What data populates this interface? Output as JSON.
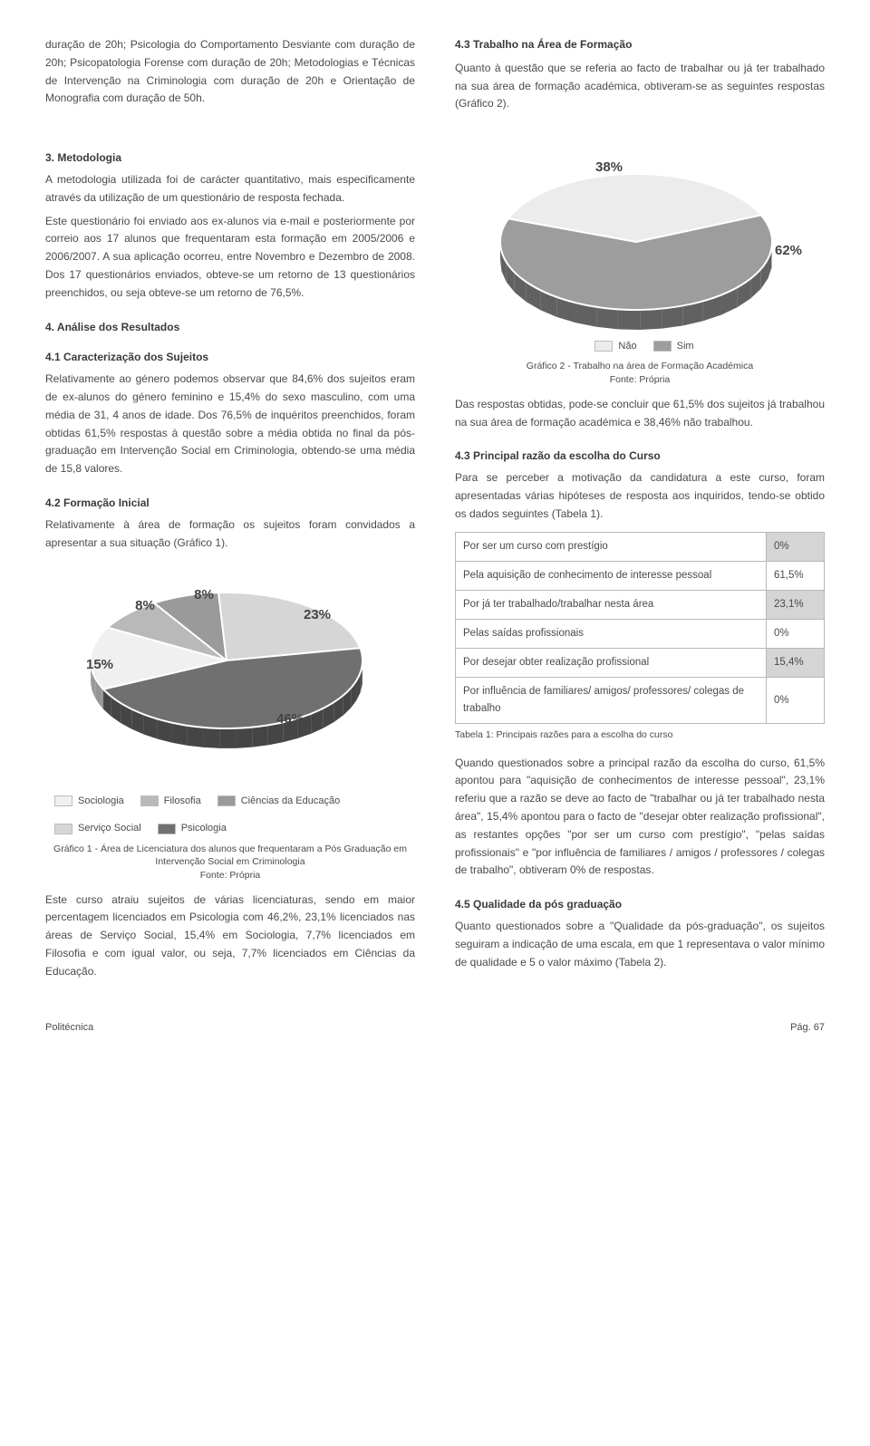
{
  "intro_col1": [
    "duração de 20h; Psicologia do Comportamento Desviante com duração de 20h; Psicopatologia Forense com duração de 20h; Metodologias e Técnicas de Intervenção na Criminologia com duração de 20h e Orientação de Monografia com duração de 50h."
  ],
  "intro_col2_head": "4.3 Trabalho na Área de Formação",
  "intro_col2_body": "Quanto à questão que se referia ao facto de trabalhar ou já ter trabalhado na sua área de formação académica, obtiveram-se as seguintes respostas (Gráfico 2).",
  "sec3_title": "3. Metodologia",
  "sec3_p1": "A metodologia utilizada foi de carácter quantitativo, mais especificamente através da utilização de um questionário de resposta fechada.",
  "sec3_p2": "Este questionário foi enviado aos ex-alunos via e-mail e posteriormente por correio aos 17 alunos que frequentaram esta formação em 2005/2006 e 2006/2007. A sua aplicação ocorreu, entre Novembro e Dezembro de 2008. Dos 17 questionários enviados, obteve-se um retorno de 13 questionários preenchidos, ou seja obteve-se um retorno de 76,5%.",
  "sec4_title": "4. Análise dos Resultados",
  "sec41_title": "4.1 Caracterização dos Sujeitos",
  "sec41_body": "Relativamente ao género podemos observar que 84,6% dos sujeitos eram de ex-alunos do género feminino e 15,4% do sexo masculino, com uma média de 31, 4 anos de idade. Dos 76,5% de inquéritos preenchidos, foram obtidas 61,5% respostas à questão sobre a média obtida no final da pós-graduação em Intervenção Social em Criminologia, obtendo-se uma média de 15,8 valores.",
  "sec42_title": "4.2 Formação Inicial",
  "sec42_body": "Relativamente à área de formação os sujeitos foram convidados a apresentar a sua situação (Gráfico 1).",
  "chart1": {
    "type": "pie-3d",
    "background": "#ffffff",
    "slice_edge": "#ffffff",
    "depth_shade": "#4f4f4f",
    "label_fontsize": 15,
    "label_color": "#4a4a4a",
    "slices": [
      {
        "label": "Sociologia",
        "pct": 15,
        "text": "15%",
        "color": "#f0f0f0"
      },
      {
        "label": "Filosofia",
        "pct": 8,
        "text": "8%",
        "color": "#b9b9b9"
      },
      {
        "label": "Ciências da Educação",
        "pct": 8,
        "text": "8%",
        "color": "#9a9a9a"
      },
      {
        "label": "Serviço Social",
        "pct": 23,
        "text": "23%",
        "color": "#d6d6d6"
      },
      {
        "label": "Psicologia",
        "pct": 46,
        "text": "46%",
        "color": "#707070"
      }
    ],
    "legend_swatch_border": "#bcbcbc",
    "caption_line1": "Gráfico 1 - Área de Licenciatura dos alunos que frequentaram a Pós Graduação em Intervenção Social em Criminologia",
    "caption_line2": "Fonte: Própria"
  },
  "aftc1": "Este curso atraiu sujeitos de várias licenciaturas, sendo em maior percentagem licenciados em Psicologia com 46,2%, 23,1% licenciados nas áreas de Serviço Social, 15,4% em Sociologia, 7,7% licenciados em Filosofia e com igual valor, ou seja, 7,7% licenciados em Ciências da Educação.",
  "chart2": {
    "type": "pie-3d",
    "background": "#ffffff",
    "slice_edge": "#ffffff",
    "depth_shade": "#5a5a5a",
    "label_fontsize": 15,
    "label_color": "#4a4a4a",
    "slices": [
      {
        "label": "Não",
        "pct": 38,
        "text": "38%",
        "color": "#ececec"
      },
      {
        "label": "Sim",
        "pct": 62,
        "text": "62%",
        "color": "#9d9d9d"
      }
    ],
    "caption_line1": "Gráfico 2 - Trabalho na área de Formação Académica",
    "caption_line2": "Fonte: Própria"
  },
  "aftc2": "Das respostas obtidas, pode-se concluir que 61,5% dos sujeitos já trabalhou na sua área de formação académica e 38,46% não trabalhou.",
  "sec43b_title": "4.3 Principal razão da escolha do Curso",
  "sec43b_body": "Para se perceber a motivação da candidatura a este curso, foram apresentadas várias hipóteses de resposta aos inquiridos, tendo-se obtido os dados seguintes (Tabela 1).",
  "table1": {
    "border_color": "#b8b8b8",
    "font_size": 11.5,
    "row_alt_bg": "#d5d5d5",
    "row_bg": "#ffffff",
    "rows": [
      {
        "label": "Por ser um curso com prestígio",
        "value": "0%",
        "shade": true
      },
      {
        "label": "Pela aquisição de conhecimento de interesse pessoal",
        "value": "61,5%",
        "shade": false
      },
      {
        "label": "Por já ter trabalhado/trabalhar nesta área",
        "value": "23,1%",
        "shade": true
      },
      {
        "label": "Pelas saídas profissionais",
        "value": "0%",
        "shade": false
      },
      {
        "label": "Por desejar obter realização profissional",
        "value": "15,4%",
        "shade": true
      },
      {
        "label": "Por influência de familiares/ amigos/ professores/ colegas de trabalho",
        "value": "0%",
        "shade": false
      }
    ],
    "caption": "Tabela 1: Principais razões para a escolha do curso"
  },
  "aftt1": "Quando questionados sobre a principal razão da escolha do curso, 61,5% apontou para \"aquisição de conhecimentos de interesse pessoal\", 23,1% referiu que a razão se deve ao facto de \"trabalhar ou já ter trabalhado nesta área\", 15,4% apontou para o facto de \"desejar obter realização profissional\", as restantes opções \"por ser um curso com prestígio\", \"pelas saídas profissionais\" e \"por influência de familiares / amigos / professores / colegas de trabalho\", obtiveram 0% de respostas.",
  "sec45_title": "4.5 Qualidade da pós graduação",
  "sec45_body": "Quanto questionados sobre a \"Qualidade da pós-graduação\", os sujeitos seguiram a indicação de uma escala, em que 1 representava o valor mínimo de qualidade e 5 o valor máximo (Tabela 2).",
  "footer": {
    "left": "Politécnica",
    "right": "Pág. 67"
  }
}
